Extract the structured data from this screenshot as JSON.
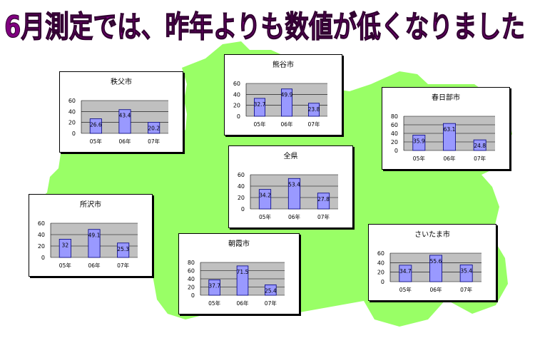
{
  "headline": "6月測定では、昨年よりも数値が低くなりました",
  "colors": {
    "headline_fill": "#800080",
    "headline_stroke": "#300030",
    "map_fill": "#99ff66",
    "plot_area": "#c0c0c0",
    "bar_fill": "#9999ff",
    "bar_stroke": "#000080"
  },
  "chart_data": [
    {
      "type": "bar",
      "title": "秩父市",
      "categories": [
        "05年",
        "06年",
        "07年"
      ],
      "values": [
        26.6,
        43.4,
        20.2
      ],
      "ylim": [
        0,
        60
      ],
      "yticks": [
        0,
        20,
        40,
        60
      ],
      "grid": true
    },
    {
      "type": "bar",
      "title": "熊谷市",
      "categories": [
        "05年",
        "06年",
        "07年"
      ],
      "values": [
        32.7,
        49.9,
        23.8
      ],
      "ylim": [
        0,
        60
      ],
      "yticks": [
        0,
        20,
        40,
        60
      ],
      "grid": true
    },
    {
      "type": "bar",
      "title": "春日部市",
      "categories": [
        "05年",
        "06年",
        "07年"
      ],
      "values": [
        35.9,
        63.1,
        24.8
      ],
      "ylim": [
        0,
        80
      ],
      "yticks": [
        0,
        20,
        40,
        60,
        80
      ],
      "grid": true
    },
    {
      "type": "bar",
      "title": "全県",
      "categories": [
        "05年",
        "06年",
        "07年"
      ],
      "values": [
        34.2,
        53.4,
        27.8
      ],
      "ylim": [
        0,
        60
      ],
      "yticks": [
        0,
        20,
        40,
        60
      ],
      "grid": true
    },
    {
      "type": "bar",
      "title": "所沢市",
      "categories": [
        "05年",
        "06年",
        "07年"
      ],
      "values": [
        32,
        49.1,
        25.3
      ],
      "ylim": [
        0,
        60
      ],
      "yticks": [
        0,
        20,
        40,
        60
      ],
      "grid": true
    },
    {
      "type": "bar",
      "title": "朝霞市",
      "categories": [
        "05年",
        "06年",
        "07年"
      ],
      "values": [
        37.7,
        71.5,
        25.4
      ],
      "ylim": [
        0,
        80
      ],
      "yticks": [
        0,
        20,
        40,
        60,
        80
      ],
      "grid": true
    },
    {
      "type": "bar",
      "title": "さいたま市",
      "categories": [
        "05年",
        "06年",
        "07年"
      ],
      "values": [
        34.7,
        55.6,
        35.4
      ],
      "ylim": [
        0,
        60
      ],
      "yticks": [
        0,
        20,
        40,
        60
      ],
      "grid": true
    }
  ]
}
